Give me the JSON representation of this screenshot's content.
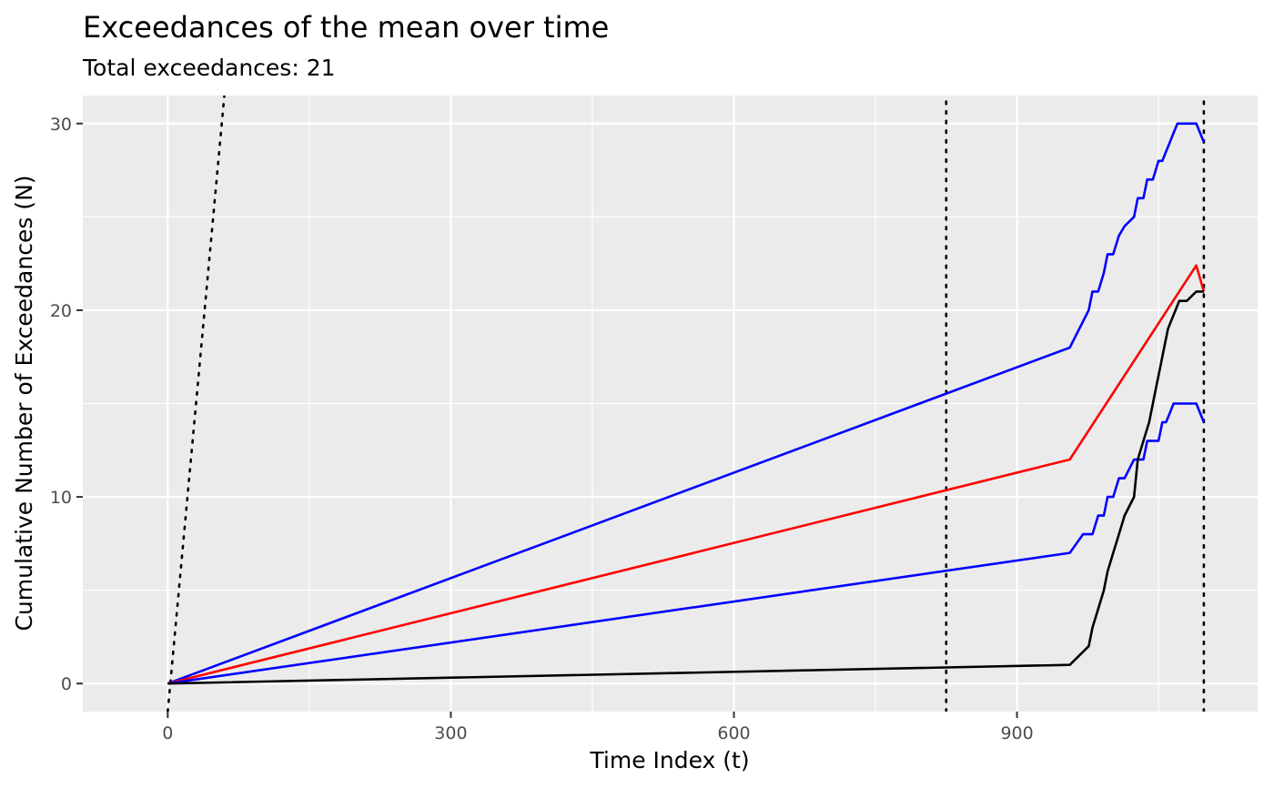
{
  "chart_data": {
    "type": "line",
    "title": "Exceedances of the mean over time",
    "subtitle": "Total exceedances: 21",
    "xlabel": "Time Index (t)",
    "ylabel": "Cumulative Number of Exceedances (N)",
    "xlim": [
      -90,
      1155
    ],
    "ylim": [
      -1.5,
      31.5
    ],
    "x_ticks": [
      0,
      300,
      600,
      900
    ],
    "y_ticks": [
      0,
      10,
      20,
      30
    ],
    "x_minor_ticks": [
      150,
      450,
      750,
      1050
    ],
    "y_minor_ticks": [
      5,
      15,
      25
    ],
    "grid": true,
    "background": "#ebebeb",
    "series": [
      {
        "color": "#0000ff",
        "x": [
          0,
          956,
          966,
          976,
          980,
          986,
          992,
          996,
          1002,
          1008,
          1014,
          1024,
          1028,
          1034,
          1038,
          1044,
          1050,
          1054,
          1058,
          1062,
          1066,
          1070,
          1080,
          1090,
          1098
        ],
        "y": [
          0,
          18,
          19,
          20,
          21,
          21,
          22,
          23,
          23,
          24,
          24.5,
          25,
          26,
          26,
          27,
          27,
          28,
          28,
          28.5,
          29,
          29.5,
          30,
          30,
          30,
          29
        ]
      },
      {
        "color": "#ff0000",
        "x": [
          0,
          956,
          1090,
          1098
        ],
        "y": [
          0,
          12,
          22.4,
          21
        ]
      },
      {
        "color": "#0000ff",
        "x": [
          0,
          956,
          970,
          980,
          986,
          992,
          996,
          1002,
          1008,
          1014,
          1024,
          1028,
          1034,
          1038,
          1044,
          1050,
          1054,
          1058,
          1062,
          1066,
          1070,
          1080,
          1090,
          1098
        ],
        "y": [
          0,
          7,
          8,
          8,
          9,
          9,
          10,
          10,
          11,
          11,
          12,
          12,
          12,
          13,
          13,
          13,
          14,
          14,
          14.5,
          15,
          15,
          15,
          15,
          14
        ]
      },
      {
        "color": "#000000",
        "x": [
          0,
          956,
          976,
          980,
          986,
          992,
          996,
          1002,
          1008,
          1014,
          1024,
          1028,
          1034,
          1040,
          1044,
          1048,
          1052,
          1056,
          1060,
          1064,
          1068,
          1072,
          1080,
          1090,
          1094,
          1098
        ],
        "y": [
          0,
          1,
          2,
          3,
          4,
          5,
          6,
          7,
          8,
          9,
          10,
          12,
          13,
          14,
          15,
          16,
          17,
          18,
          19,
          19.5,
          20,
          20.5,
          20.5,
          21,
          21,
          21
        ]
      }
    ],
    "reference_lines": [
      {
        "style": "dotted",
        "color": "#000000",
        "x": [
          0,
          60
        ],
        "y": [
          -1.5,
          31.5
        ]
      },
      {
        "style": "dotted",
        "color": "#000000",
        "x": [
          825,
          825
        ],
        "y": [
          -1.5,
          31.5
        ]
      },
      {
        "style": "dotted",
        "color": "#000000",
        "x": [
          1098,
          1098
        ],
        "y": [
          -1.5,
          31.5
        ]
      }
    ]
  }
}
